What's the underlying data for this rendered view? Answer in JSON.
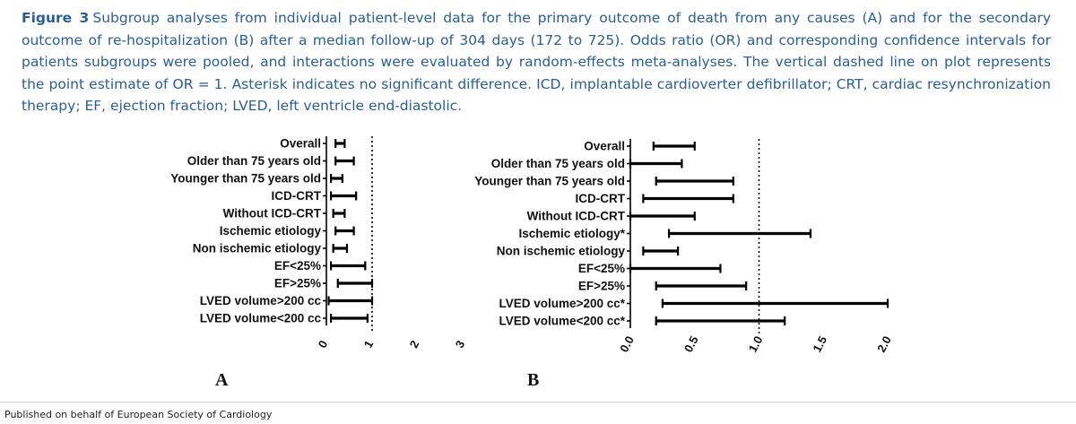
{
  "caption": {
    "label": "Figure 3",
    "text": "Subgroup analyses from individual patient-level data for the primary outcome of death from any causes (A) and for the secondary outcome of re-hospitalization (B) after a median follow-up of 304 days (172 to 725). Odds ratio (OR) and corresponding confidence intervals for patients subgroups were pooled, and interactions were evaluated by random-effects meta-analyses. The vertical dashed line on plot represents the point estimate of OR = 1. Asterisk indicates no significant difference. ICD, implantable cardioverter defibrillator; CRT, cardiac resynchronization therapy; EF, ejection fraction; LVED, left ventricle end-diastolic."
  },
  "footer": "Published on behalf of European Society of Cardiology",
  "chart_data": [
    {
      "type": "forest",
      "panel_label": "A",
      "categories": [
        "Overall",
        "Older than 75 years old",
        "Younger than 75 years old",
        "ICD-CRT",
        "Without ICD-CRT",
        "Ischemic etiology",
        "Non ischemic etiology",
        "EF<25%",
        "EF>25%",
        "LVED volume>200 cc",
        "LVED volume<200 cc"
      ],
      "ci_lower": [
        0.2,
        0.2,
        0.1,
        0.1,
        0.15,
        0.2,
        0.15,
        0.1,
        0.25,
        0.05,
        0.1
      ],
      "ci_upper": [
        0.4,
        0.6,
        0.35,
        0.65,
        0.4,
        0.6,
        0.45,
        0.85,
        1.0,
        1.0,
        0.9
      ],
      "reference_line": 1,
      "xlim": [
        0,
        3
      ],
      "xticks": [
        "0",
        "1",
        "2",
        "3"
      ],
      "xlabel": "",
      "ylabel": ""
    },
    {
      "type": "forest",
      "panel_label": "B",
      "categories": [
        "Overall",
        "Older than 75 years old",
        "Younger than 75 years old",
        "ICD-CRT",
        "Without ICD-CRT",
        "Ischemic etiology*",
        "Non ischemic etiology",
        "EF<25%",
        "EF>25%",
        "LVED volume>200 cc*",
        "LVED volume<200 cc*"
      ],
      "ci_lower": [
        0.18,
        0.0,
        0.2,
        0.1,
        0.0,
        0.3,
        0.1,
        0.0,
        0.2,
        0.25,
        0.2
      ],
      "ci_upper": [
        0.5,
        0.4,
        0.8,
        0.8,
        0.5,
        1.4,
        0.37,
        0.7,
        0.9,
        2.0,
        1.2
      ],
      "reference_line": 1.0,
      "xlim": [
        0,
        2
      ],
      "xticks": [
        "0.0",
        "0.5",
        "1.0",
        "1.5",
        "2.0"
      ],
      "xlabel": "",
      "ylabel": ""
    }
  ]
}
